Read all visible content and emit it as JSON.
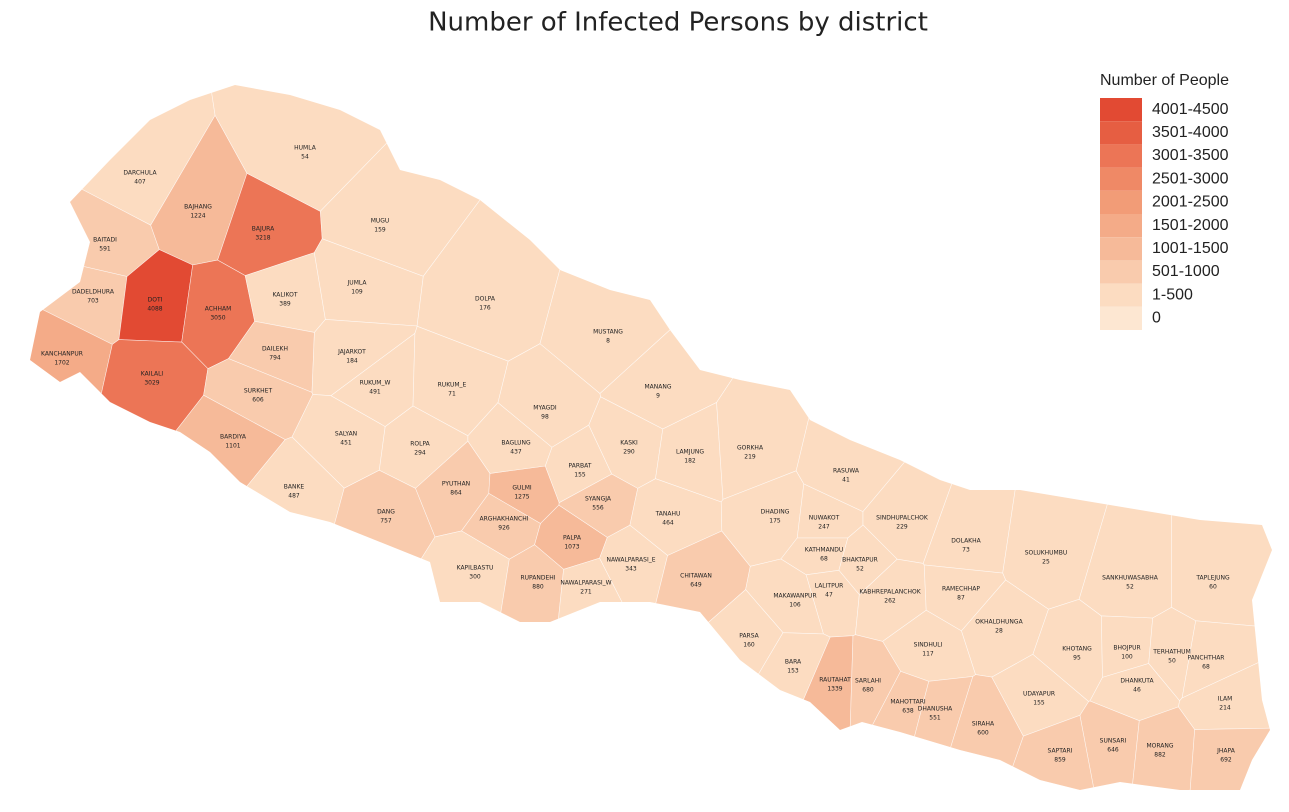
{
  "title": "Number of Infected Persons by district",
  "legend": {
    "title": "Number of People",
    "bins": [
      {
        "label": "4001-4500",
        "min": 4001,
        "max": 4500,
        "color": "#e24a33"
      },
      {
        "label": "3501-4000",
        "min": 3501,
        "max": 4000,
        "color": "#e65e42"
      },
      {
        "label": "3001-3500",
        "min": 3001,
        "max": 3500,
        "color": "#ec7556"
      },
      {
        "label": "2501-3000",
        "min": 2501,
        "max": 3000,
        "color": "#ef8966"
      },
      {
        "label": "2001-2500",
        "min": 2001,
        "max": 2500,
        "color": "#f29c77"
      },
      {
        "label": "1501-2000",
        "min": 1501,
        "max": 2000,
        "color": "#f4ab88"
      },
      {
        "label": "1001-1500",
        "min": 1001,
        "max": 1500,
        "color": "#f6ba99"
      },
      {
        "label": "501-1000",
        "min": 501,
        "max": 1000,
        "color": "#f9cbad"
      },
      {
        "label": "1-500",
        "min": 1,
        "max": 500,
        "color": "#fcdcc1"
      },
      {
        "label": "0",
        "min": 0,
        "max": 0,
        "color": "#fde7d2"
      }
    ]
  },
  "districts": [
    {
      "name": "DARCHULA",
      "value": 407
    },
    {
      "name": "BAITADI",
      "value": 591
    },
    {
      "name": "DADELDHURA",
      "value": 703
    },
    {
      "name": "KANCHANPUR",
      "value": 1702
    },
    {
      "name": "BAJHANG",
      "value": 1224
    },
    {
      "name": "BAJURA",
      "value": 3218
    },
    {
      "name": "DOTI",
      "value": 4088
    },
    {
      "name": "ACHHAM",
      "value": 3050
    },
    {
      "name": "KAILALI",
      "value": 3029
    },
    {
      "name": "KALIKOT",
      "value": 389
    },
    {
      "name": "DAILEKH",
      "value": 794
    },
    {
      "name": "SURKHET",
      "value": 606
    },
    {
      "name": "BARDIYA",
      "value": 1101
    },
    {
      "name": "HUMLA",
      "value": 54
    },
    {
      "name": "MUGU",
      "value": 159
    },
    {
      "name": "JUMLA",
      "value": 109
    },
    {
      "name": "DOLPA",
      "value": 176
    },
    {
      "name": "JAJARKOT",
      "value": 184
    },
    {
      "name": "RUKUM_W",
      "value": 491
    },
    {
      "name": "RUKUM_E",
      "value": 71
    },
    {
      "name": "SALYAN",
      "value": 451
    },
    {
      "name": "BANKE",
      "value": 487
    },
    {
      "name": "DANG",
      "value": 757
    },
    {
      "name": "ROLPA",
      "value": 294
    },
    {
      "name": "PYUTHAN",
      "value": 864
    },
    {
      "name": "GULMI",
      "value": 1275
    },
    {
      "name": "ARGHAKHANCHI",
      "value": 926
    },
    {
      "name": "PALPA",
      "value": 1073
    },
    {
      "name": "BAGLUNG",
      "value": 437
    },
    {
      "name": "MYAGDI",
      "value": 98
    },
    {
      "name": "MUSTANG",
      "value": 8
    },
    {
      "name": "MANANG",
      "value": 9
    },
    {
      "name": "PARBAT",
      "value": 155
    },
    {
      "name": "KASKI",
      "value": 290
    },
    {
      "name": "LAMJUNG",
      "value": 182
    },
    {
      "name": "GORKHA",
      "value": 219
    },
    {
      "name": "SYANGJA",
      "value": 556
    },
    {
      "name": "TANAHU",
      "value": 464
    },
    {
      "name": "KAPILBASTU",
      "value": 300
    },
    {
      "name": "RUPANDEHI",
      "value": 880
    },
    {
      "name": "NAWALPARASI_W",
      "value": 271
    },
    {
      "name": "NAWALPARASI_E",
      "value": 343
    },
    {
      "name": "CHITAWAN",
      "value": 649
    },
    {
      "name": "DHADING",
      "value": 175
    },
    {
      "name": "NUWAKOT",
      "value": 247
    },
    {
      "name": "RASUWA",
      "value": 41
    },
    {
      "name": "SINDHUPALCHOK",
      "value": 229
    },
    {
      "name": "KATHMANDU",
      "value": 68
    },
    {
      "name": "BHAKTAPUR",
      "value": 52
    },
    {
      "name": "LALITPUR",
      "value": 47
    },
    {
      "name": "MAKAWANPUR",
      "value": 106
    },
    {
      "name": "KABHREPALANCHOK",
      "value": 262
    },
    {
      "name": "DOLAKHA",
      "value": 73
    },
    {
      "name": "SOLUKHUMBU",
      "value": 25
    },
    {
      "name": "RAMECHHAP",
      "value": 87
    },
    {
      "name": "OKHALDHUNGA",
      "value": 28
    },
    {
      "name": "SINDHULI",
      "value": 117
    },
    {
      "name": "PARSA",
      "value": 160
    },
    {
      "name": "BARA",
      "value": 153
    },
    {
      "name": "RAUTAHAT",
      "value": 1339
    },
    {
      "name": "SARLAHI",
      "value": 680
    },
    {
      "name": "MAHOTTARI",
      "value": 638
    },
    {
      "name": "DHANUSHA",
      "value": 551
    },
    {
      "name": "SIRAHA",
      "value": 600
    },
    {
      "name": "UDAYAPUR",
      "value": 155
    },
    {
      "name": "KHOTANG",
      "value": 95
    },
    {
      "name": "BHOJPUR",
      "value": 100
    },
    {
      "name": "SANKHUWASABHA",
      "value": 52
    },
    {
      "name": "TAPLEJUNG",
      "value": 60
    },
    {
      "name": "TERHATHUM",
      "value": 50
    },
    {
      "name": "PANCHTHAR",
      "value": 68
    },
    {
      "name": "DHANKUTA",
      "value": 46
    },
    {
      "name": "ILAM",
      "value": 214
    },
    {
      "name": "SUNSARI",
      "value": 646
    },
    {
      "name": "MORANG",
      "value": 882
    },
    {
      "name": "JHAPA",
      "value": 692
    },
    {
      "name": "SAPTARI",
      "value": 859
    }
  ]
}
